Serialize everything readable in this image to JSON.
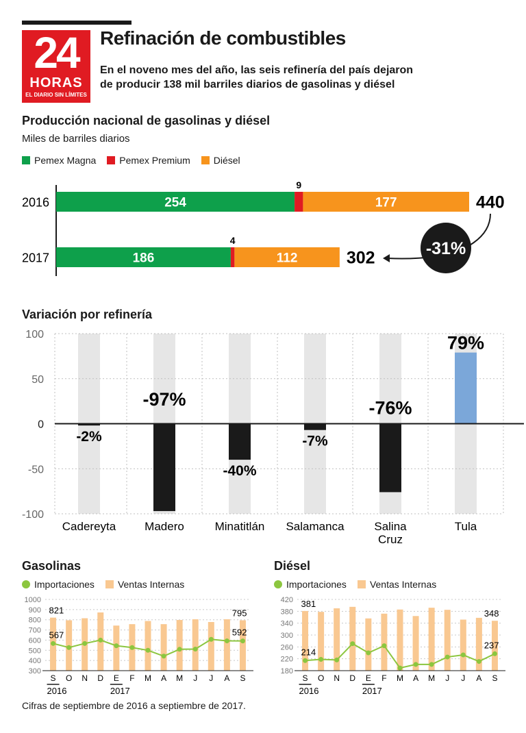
{
  "header": {
    "logo_number": "24",
    "logo_word": "HORAS",
    "logo_tagline": "EL DIARIO SIN LÍMITES",
    "title": "Refinación de combustibles",
    "subtitle": "En el noveno mes del año, las seis refinería del país dejaron de producir 138 mil barriles diarios de gasolinas y diésel"
  },
  "colors": {
    "magna": "#0ea04b",
    "premium": "#e01b22",
    "diesel": "#f7941d",
    "positive": "#7ba7d9",
    "negative": "#1a1a1a",
    "track": "#e6e6e6",
    "importaciones": "#8cc63f",
    "ventas": "#f9c891"
  },
  "production": {
    "title": "Producción nacional de gasolinas y diésel",
    "units": "Miles de barriles diarios",
    "legend": [
      "Pemex Magna",
      "Pemex Premium",
      "Diésel"
    ],
    "change_label": "-31%"
  },
  "variation": {
    "title": "Variación por refinería"
  },
  "gasolinas": {
    "title": "Gasolinas",
    "legend": [
      "Importaciones",
      "Ventas Internas"
    ]
  },
  "diesel": {
    "title": "Diésel",
    "legend": [
      "Importaciones",
      "Ventas Internas"
    ]
  },
  "footnote": "Cifras de septiembre de 2016 a septiembre de 2017.",
  "chart_data": [
    {
      "id": "production",
      "type": "bar",
      "orientation": "horizontal",
      "stacked": true,
      "categories": [
        "2016",
        "2017"
      ],
      "series": [
        {
          "name": "Pemex Magna",
          "values": [
            254,
            186
          ]
        },
        {
          "name": "Pemex Premium",
          "values": [
            9,
            4
          ]
        },
        {
          "name": "Diésel",
          "values": [
            177,
            112
          ]
        }
      ],
      "totals": [
        440,
        302
      ],
      "title": "Producción nacional de gasolinas y diésel",
      "xlabel": "",
      "ylabel": "Miles de barriles diarios"
    },
    {
      "id": "variation",
      "type": "bar",
      "categories": [
        "Cadereyta",
        "Madero",
        "Minatitlán",
        "Salamanca",
        "Salina Cruz",
        "Tula"
      ],
      "values": [
        -2,
        -97,
        -40,
        -7,
        -76,
        79
      ],
      "labels": [
        "-2%",
        "-97%",
        "-40%",
        "-7%",
        "-76%",
        "79%"
      ],
      "title": "Variación por refinería",
      "ylim": [
        -100,
        100
      ],
      "yticks": [
        100,
        50,
        0,
        -50,
        -100
      ],
      "grid": true
    },
    {
      "id": "gasolinas",
      "type": "bar",
      "title": "Gasolinas",
      "categories": [
        "S",
        "O",
        "N",
        "D",
        "E",
        "F",
        "M",
        "A",
        "M",
        "J",
        "J",
        "A",
        "S"
      ],
      "year_labels": [
        "2016",
        "2017"
      ],
      "ylim": [
        300,
        1000
      ],
      "yticks": [
        1000,
        900,
        800,
        700,
        600,
        500,
        400,
        300
      ],
      "series": [
        {
          "name": "Ventas Internas",
          "kind": "bar",
          "values": [
            821,
            795,
            815,
            872,
            743,
            757,
            788,
            757,
            798,
            805,
            778,
            805,
            795
          ]
        },
        {
          "name": "Importaciones",
          "kind": "line",
          "values": [
            567,
            527,
            567,
            600,
            545,
            527,
            500,
            443,
            510,
            512,
            608,
            593,
            592
          ]
        }
      ],
      "annotations": [
        "821",
        "567",
        "795",
        "592"
      ]
    },
    {
      "id": "diesel",
      "type": "bar",
      "title": "Diésel",
      "categories": [
        "S",
        "O",
        "N",
        "D",
        "E",
        "F",
        "M",
        "A",
        "M",
        "J",
        "J",
        "A",
        "S"
      ],
      "year_labels": [
        "2016",
        "2017"
      ],
      "ylim": [
        180,
        420
      ],
      "yticks": [
        420,
        380,
        340,
        300,
        260,
        220,
        180
      ],
      "series": [
        {
          "name": "Ventas Internas",
          "kind": "bar",
          "values": [
            381,
            378,
            390,
            395,
            356,
            372,
            386,
            364,
            392,
            385,
            352,
            358,
            348
          ]
        },
        {
          "name": "Importaciones",
          "kind": "line",
          "values": [
            214,
            218,
            216,
            271,
            240,
            264,
            189,
            201,
            201,
            226,
            233,
            211,
            237
          ]
        }
      ],
      "annotations": [
        "381",
        "214",
        "348",
        "237"
      ]
    }
  ]
}
